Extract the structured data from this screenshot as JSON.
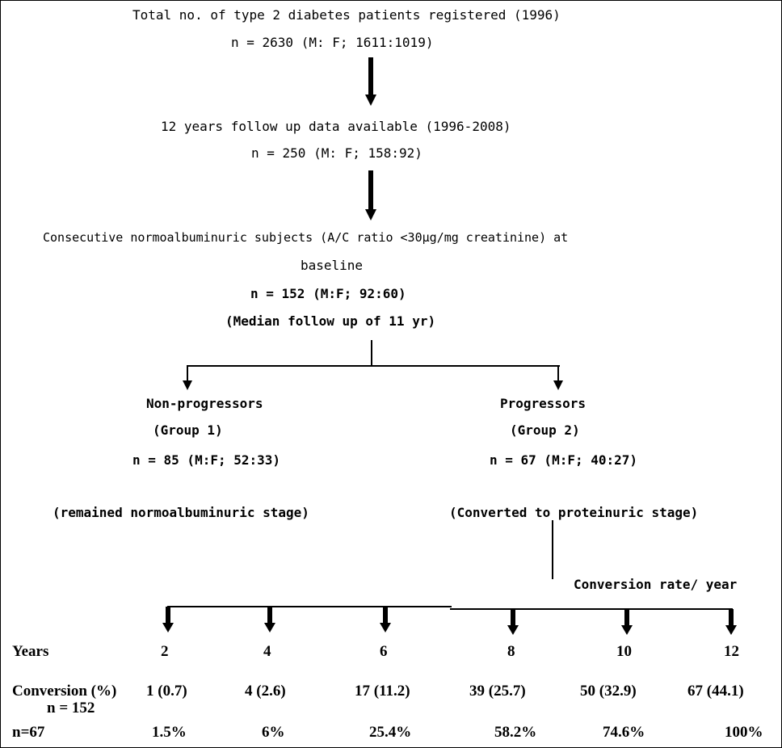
{
  "flow": {
    "registered": {
      "title": "Total no. of type 2 diabetes patients registered (1996)",
      "count": "n = 2630 (M: F; 1611:1019)"
    },
    "followup": {
      "title": "12 years follow up data available (1996-2008)",
      "count": "n = 250 (M: F; 158:92)"
    },
    "normo": {
      "title_line1": "Consecutive normoalbuminuric subjects (A/C ratio <30µg/mg creatinine) at",
      "title_line2": "baseline",
      "count": "n = 152 (M:F; 92:60)",
      "median": "(Median  follow up of 11 yr)"
    },
    "group1": {
      "name": "Non-progressors",
      "group": "(Group 1)",
      "count": "n = 85 (M:F; 52:33)",
      "note": "(remained normoalbuminuric stage)"
    },
    "group2": {
      "name": "Progressors",
      "group": "(Group 2)",
      "count": "n = 67 (M:F; 40:27)",
      "note": "(Converted to  proteinuric stage)"
    },
    "conversion_rate_label": "Conversion rate/ year"
  },
  "table": {
    "years_label": "Years",
    "conversion_label": "Conversion (%)",
    "conversion_sub": "n = 152",
    "n67_label": "n=67",
    "years": [
      "2",
      "4",
      "6",
      "8",
      "10",
      "12"
    ],
    "conversion": [
      "1 (0.7)",
      "4 (2.6)",
      "17 (11.2)",
      "39 (25.7)",
      "50 (32.9)",
      "67 (44.1)"
    ],
    "cumulative": [
      "1.5%",
      "6%",
      "25.4%",
      "58.2%",
      "74.6%",
      "100%"
    ]
  }
}
